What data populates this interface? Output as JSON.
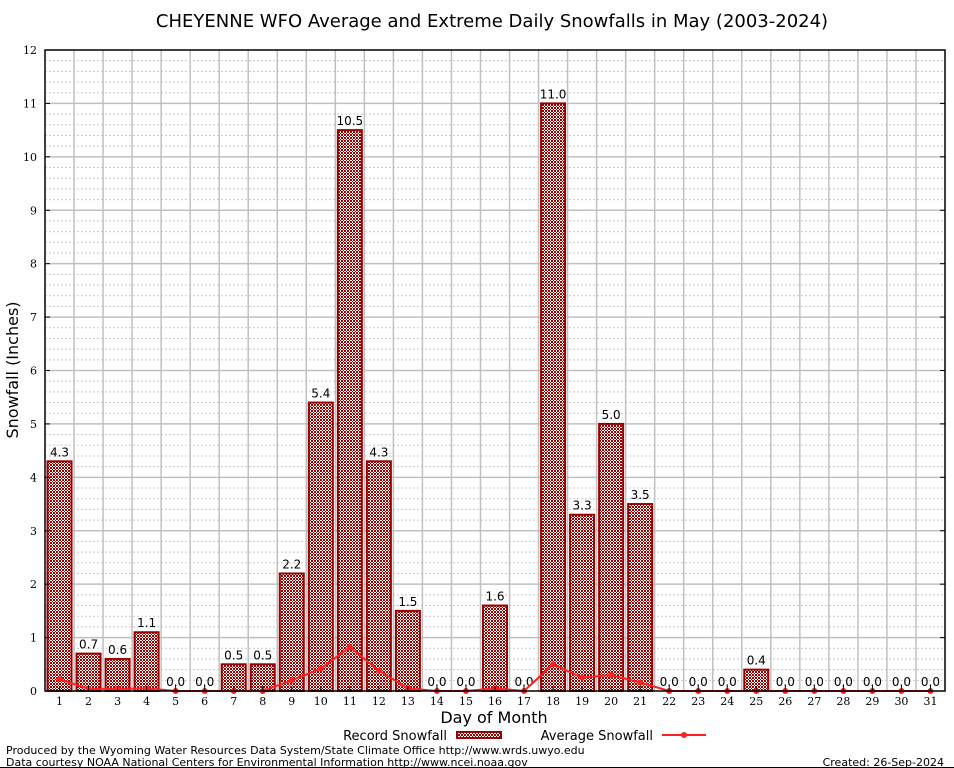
{
  "chart_data": {
    "type": "bar",
    "title": "CHEYENNE WFO Average and Extreme Daily Snowfalls in May (2003-2024)",
    "xlabel": "Day of Month",
    "ylabel": "Snowfall (Inches)",
    "ylim": [
      0,
      12
    ],
    "yticks": [
      "0",
      "1",
      "2",
      "3",
      "4",
      "5",
      "6",
      "7",
      "8",
      "9",
      "10",
      "11",
      "12"
    ],
    "categories": [
      "1",
      "2",
      "3",
      "4",
      "5",
      "6",
      "7",
      "8",
      "9",
      "10",
      "11",
      "12",
      "13",
      "14",
      "15",
      "16",
      "17",
      "18",
      "19",
      "20",
      "21",
      "22",
      "23",
      "24",
      "25",
      "26",
      "27",
      "28",
      "29",
      "30",
      "31"
    ],
    "grid": true,
    "legend_position": "bottom",
    "series": [
      {
        "name": "Record Snowfall",
        "type": "bar",
        "color": "#990000",
        "values": [
          4.3,
          0.7,
          0.6,
          1.1,
          0.0,
          0.0,
          0.5,
          0.5,
          2.2,
          5.4,
          10.5,
          4.3,
          1.5,
          0.0,
          0.0,
          1.6,
          0.0,
          11.0,
          3.3,
          5.0,
          3.5,
          0.0,
          0.0,
          0.0,
          0.4,
          0.0,
          0.0,
          0.0,
          0.0,
          0.0,
          0.0
        ],
        "labels": [
          "4.3",
          "0.7",
          "0.6",
          "1.1",
          "0.0",
          "0.0",
          "0.5",
          "0.5",
          "2.2",
          "5.4",
          "10.5",
          "4.3",
          "1.5",
          "0.0",
          "0.0",
          "1.6",
          "0.0",
          "11.0",
          "3.3",
          "5.0",
          "3.5",
          "0.0",
          "0.0",
          "0.0",
          "0.4",
          "0.0",
          "0.0",
          "0.0",
          "0.0",
          "0.0",
          "0.0"
        ]
      },
      {
        "name": "Average Snowfall",
        "type": "line",
        "color": "#ff2020",
        "values": [
          0.22,
          0.04,
          0.04,
          0.05,
          0,
          0,
          0,
          0,
          0.2,
          0.42,
          0.82,
          0.38,
          0.05,
          0,
          0,
          0.05,
          0,
          0.5,
          0.25,
          0.3,
          0.16,
          0,
          0,
          0,
          0,
          0,
          0,
          0,
          0,
          0,
          0
        ]
      }
    ]
  },
  "footer": {
    "line1": "Produced by the Wyoming Water Resources Data System/State Climate Office http://www.wrds.uwyo.edu",
    "line2": "Data courtesy NOAA National Centers for Environmental Information http://www.ncei.noaa.gov",
    "created": "Created: 26-Sep-2024"
  }
}
